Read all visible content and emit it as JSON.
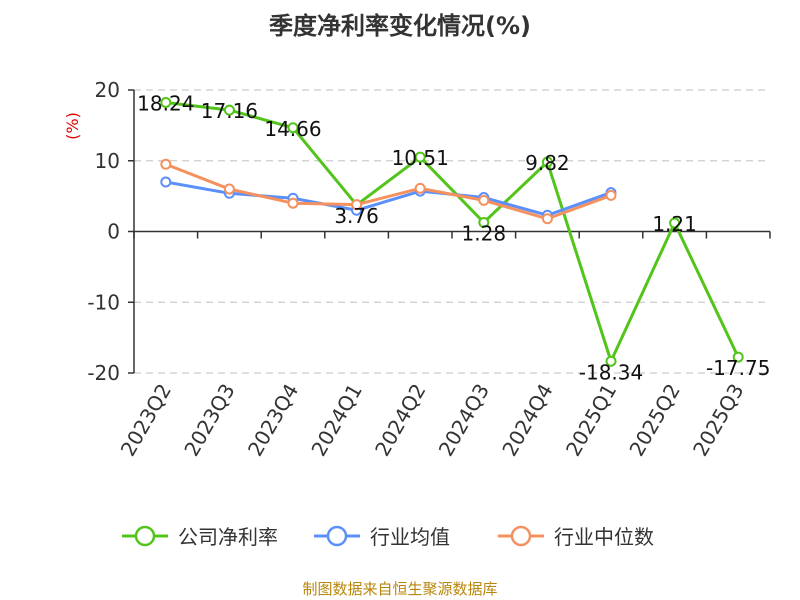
{
  "chart_data": {
    "type": "line",
    "title": "季度净利率变化情况(%)",
    "ylabel": "(%)",
    "ylim": [
      -20,
      20
    ],
    "yticks": [
      20,
      10,
      0,
      -10,
      -20
    ],
    "grid": true,
    "legend_position": "bottom",
    "categories": [
      "2023Q2",
      "2023Q3",
      "2023Q4",
      "2024Q1",
      "2024Q2",
      "2024Q3",
      "2024Q4",
      "2025Q1",
      "2025Q2",
      "2025Q3"
    ],
    "series": [
      {
        "name": "公司净利率",
        "color": "#52c41a",
        "values": [
          18.24,
          17.16,
          14.66,
          3.76,
          10.51,
          1.28,
          9.82,
          -18.34,
          1.21,
          -17.75
        ],
        "labels": [
          "18.24",
          "17.16",
          "14.66",
          "3.76",
          "10.51",
          "1.28",
          "9.82",
          "-18.34",
          "1.21",
          "-17.75"
        ]
      },
      {
        "name": "行业均值",
        "color": "#5b8ff9",
        "values": [
          7.0,
          5.4,
          4.7,
          3.0,
          5.7,
          4.8,
          2.3,
          5.5,
          null,
          null
        ]
      },
      {
        "name": "行业中位数",
        "color": "#f4915e",
        "values": [
          9.5,
          6.0,
          4.0,
          3.8,
          6.1,
          4.4,
          1.8,
          5.1,
          null,
          null
        ]
      }
    ]
  },
  "footer": {
    "source": "制图数据来自恒生聚源数据库"
  }
}
